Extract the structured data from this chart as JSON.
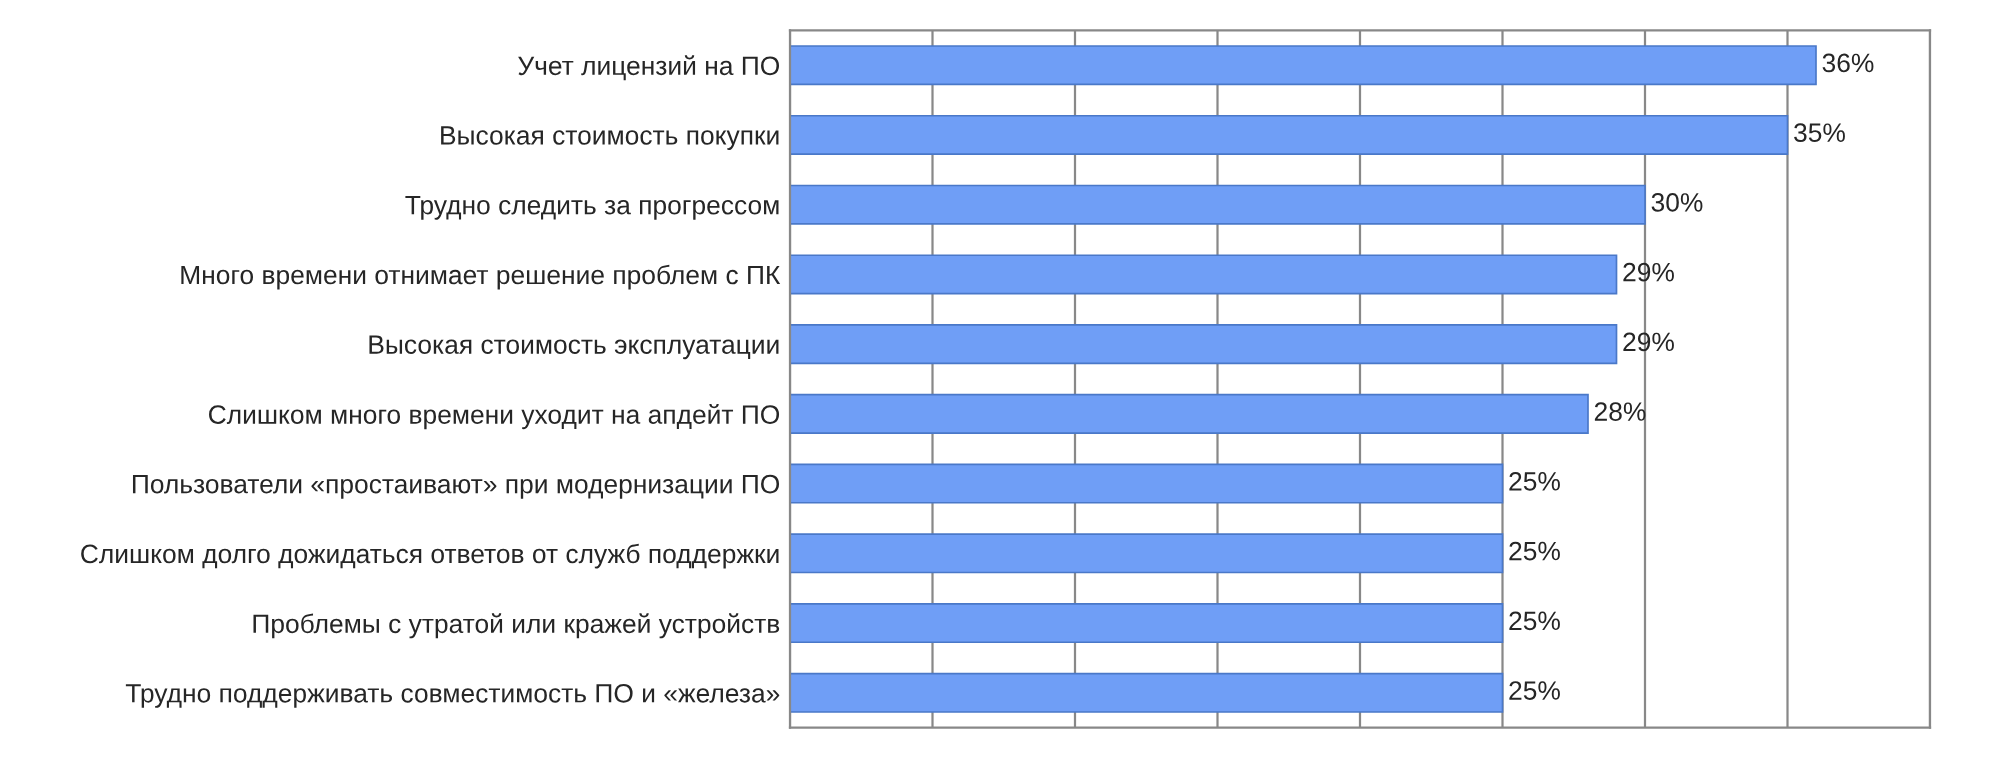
{
  "chart_data": {
    "type": "bar",
    "orientation": "horizontal",
    "categories": [
      "Учет лицензий на ПО",
      "Высокая стоимость покупки",
      "Трудно следить за прогрессом",
      "Много времени отнимает решение проблем с ПК",
      "Высокая стоимость эксплуатации",
      "Слишком много времени уходит на апдейт ПО",
      "Пользователи «простаивают» при модернизации ПО",
      "Слишком долго дожидаться ответов от служб поддержки",
      "Проблемы с утратой или кражей устройств",
      "Трудно поддерживать совместимость ПО и «железа»"
    ],
    "values": [
      36,
      35,
      30,
      29,
      29,
      28,
      25,
      25,
      25,
      25
    ],
    "value_labels": [
      "36%",
      "35%",
      "30%",
      "29%",
      "29%",
      "28%",
      "25%",
      "25%",
      "25%",
      "25%"
    ],
    "color": "#6f9ef6",
    "xlim": [
      0,
      40
    ],
    "xticks": [
      {
        "value": 0,
        "label": null
      },
      {
        "value": 5,
        "label": null
      },
      {
        "value": 10,
        "label": null
      },
      {
        "value": 15,
        "label": null
      },
      {
        "value": 20,
        "label": null
      },
      {
        "value": 25,
        "label": null
      },
      {
        "value": 30,
        "label": null
      },
      {
        "value": 35,
        "label": null
      },
      {
        "value": 40,
        "label": null
      }
    ],
    "tick_labels": "y",
    "grid": "x",
    "legend": false
  }
}
